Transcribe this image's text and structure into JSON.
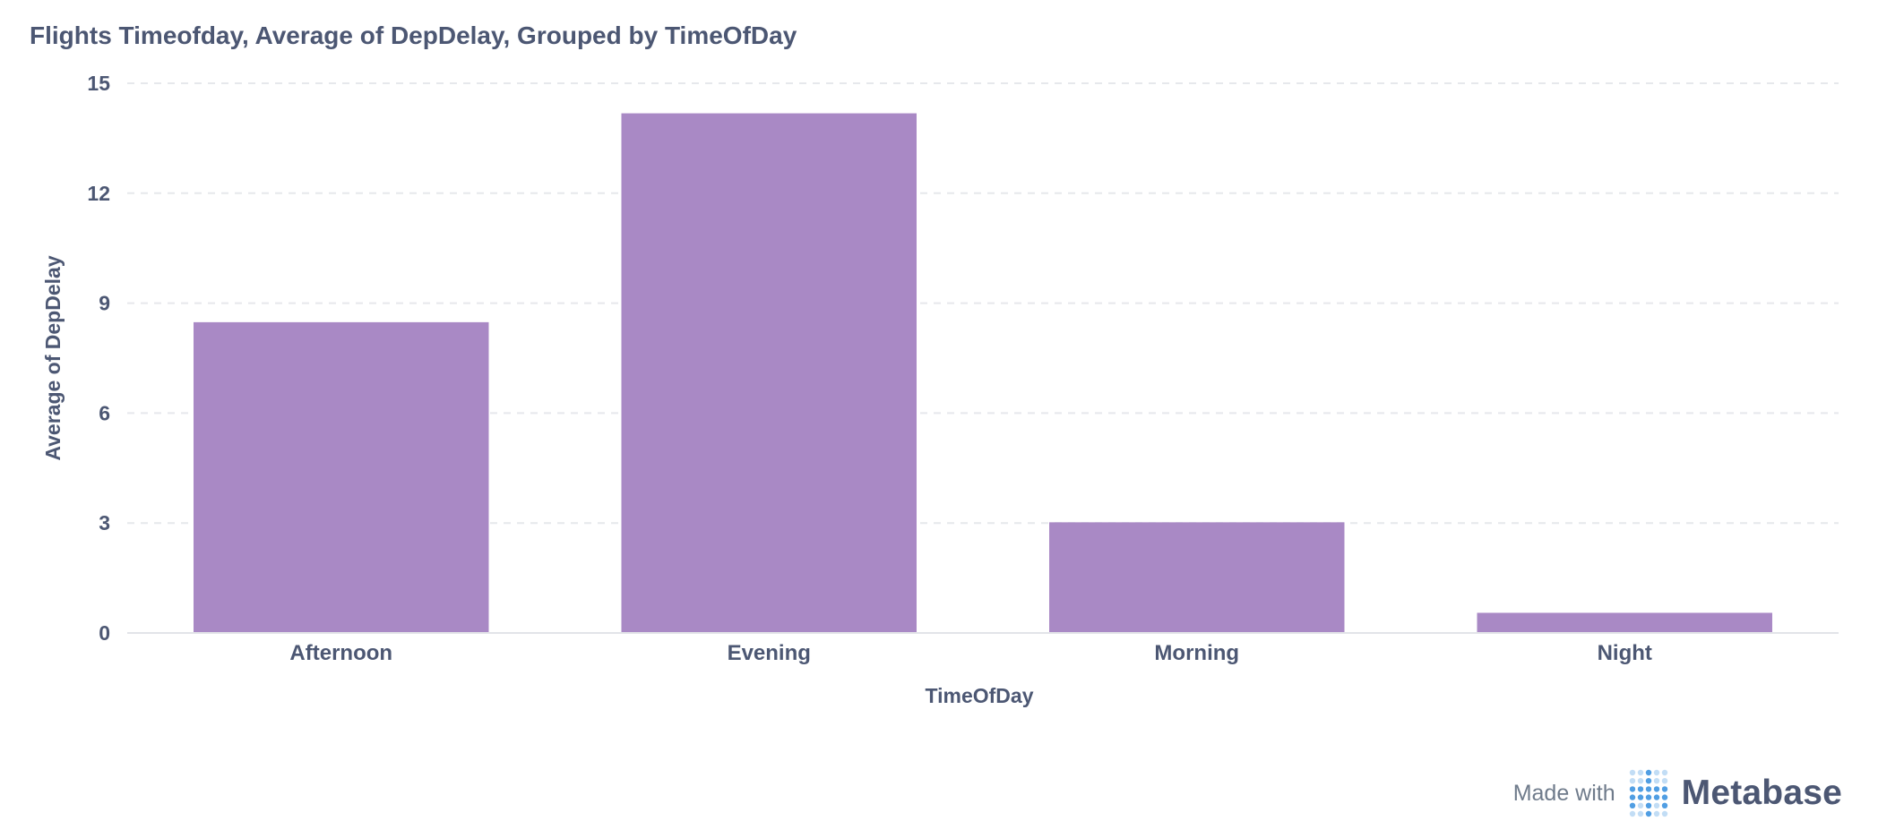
{
  "title": "Flights Timeofday, Average of DepDelay, Grouped by TimeOfDay",
  "chart_data": {
    "type": "bar",
    "categories": [
      "Afternoon",
      "Evening",
      "Morning",
      "Night"
    ],
    "values": [
      8.48,
      14.18,
      3.02,
      0.55
    ],
    "xlabel": "TimeOfDay",
    "ylabel": "Average of DepDelay",
    "ylim": [
      0,
      15
    ],
    "yticks": [
      0,
      3,
      6,
      9,
      12,
      15
    ],
    "grid": true,
    "legend": "none",
    "bar_color": "#a989c5"
  },
  "footer": {
    "made_with": "Made with",
    "brand": "Metabase",
    "logo_icon": "metabase-logo-icon",
    "logo_color": "#509ee3"
  }
}
